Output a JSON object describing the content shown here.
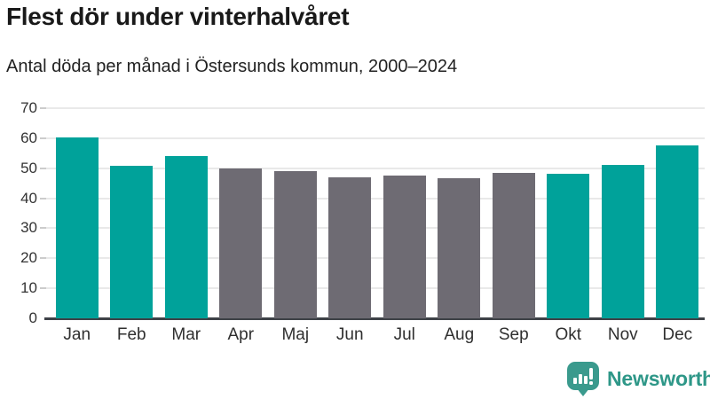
{
  "header": {
    "title": "Flest dör under vinterhalvåret",
    "subtitle": "Antal döda per månad i Östersunds kommun, 2000–2024"
  },
  "chart_data": {
    "type": "bar",
    "title": "Flest dör under vinterhalvåret",
    "subtitle": "Antal döda per månad i Östersunds kommun, 2000–2024",
    "categories": [
      "Jan",
      "Feb",
      "Mar",
      "Apr",
      "Maj",
      "Jun",
      "Jul",
      "Aug",
      "Sep",
      "Okt",
      "Nov",
      "Dec"
    ],
    "values": [
      60.4,
      50.9,
      54.2,
      49.8,
      48.9,
      47.0,
      47.6,
      46.7,
      48.4,
      48.2,
      51.1,
      57.5
    ],
    "highlighted": [
      true,
      true,
      true,
      false,
      false,
      false,
      false,
      false,
      false,
      true,
      true,
      true
    ],
    "colors": {
      "highlight": "#00a29a",
      "default": "#6e6b73"
    },
    "xlabel": "",
    "ylabel": "",
    "ylim": [
      0,
      70
    ],
    "yticks": [
      0,
      10,
      20,
      30,
      40,
      50,
      60,
      70
    ],
    "grid": true,
    "legend": false
  },
  "footer": {
    "brand": "Newsworthy",
    "brand_color": "#2e9788",
    "badge_color": "#3a9a8d"
  }
}
